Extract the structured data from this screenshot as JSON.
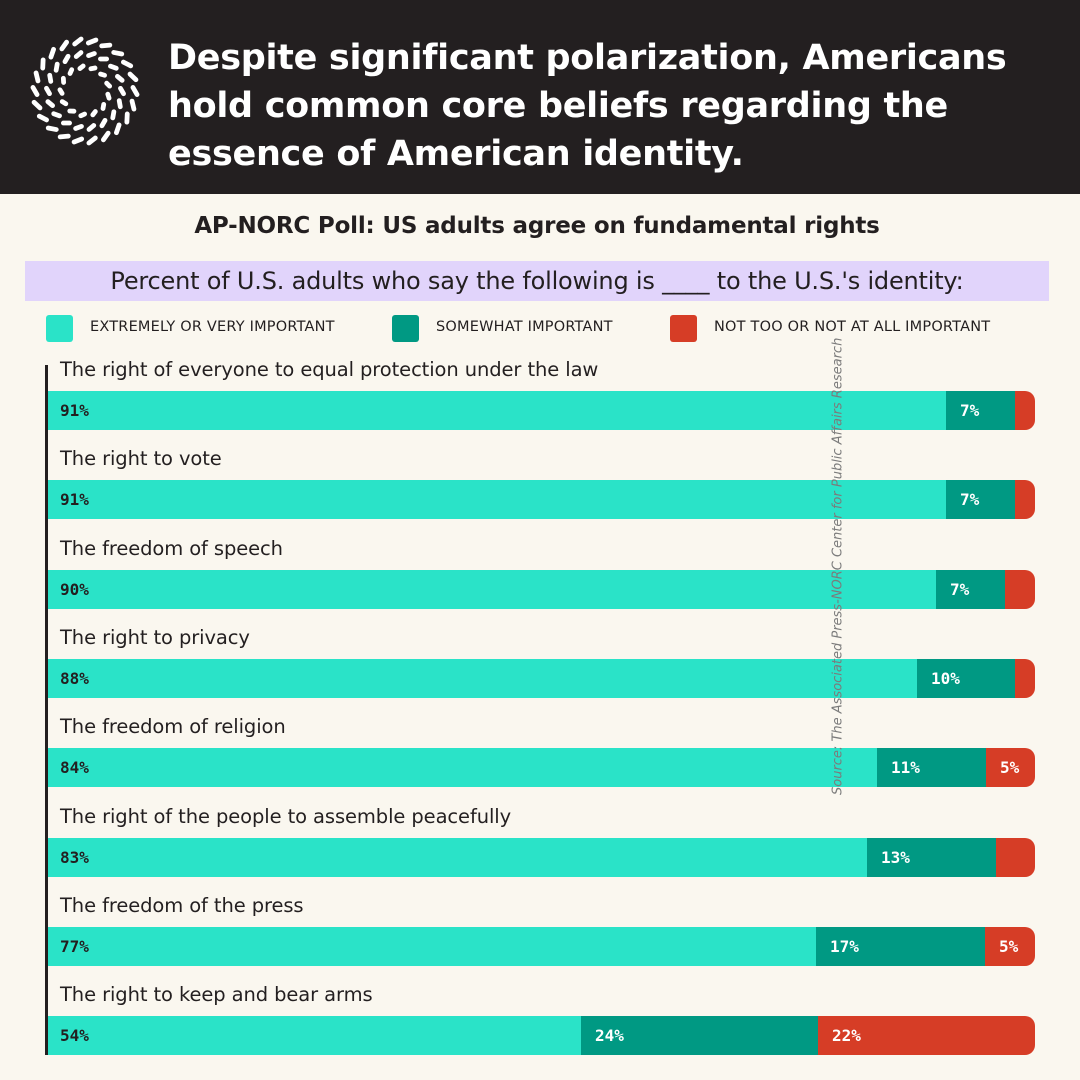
{
  "header": {
    "headline_lines": [
      "Despite significant polarization, Americans",
      "hold common core beliefs regarding the",
      "essence of American identity."
    ]
  },
  "colors": {
    "header_bg": "#231f20",
    "background": "#faf7ef",
    "question_bg": "#e1d4fb",
    "extremely": "#2ae3c8",
    "somewhat": "#009983",
    "not_important": "#d63d26"
  },
  "chart_data": {
    "type": "bar",
    "orientation": "horizontal",
    "stacked": true,
    "title": "AP-NORC Poll: US adults agree on fundamental rights",
    "subtitle": "Percent of U.S. adults who say the following is ____ to the U.S.'s identity:",
    "legend_position": "top",
    "grid": false,
    "xlim": [
      0,
      100
    ],
    "categories": [
      "The right of everyone to equal protection under the law",
      "The right to vote",
      "The freedom of speech",
      "The right to privacy",
      "The freedom of religion",
      "The right of the people to assemble peacefully",
      "The freedom of the press",
      "The right to keep and bear arms"
    ],
    "series": [
      {
        "name": "EXTREMELY OR VERY IMPORTANT",
        "color": "#2ae3c8",
        "values": [
          91,
          91,
          90,
          88,
          84,
          83,
          77,
          54
        ],
        "labels": [
          "91%",
          "91%",
          "90%",
          "88%",
          "84%",
          "83%",
          "77%",
          "54%"
        ]
      },
      {
        "name": "SOMEWHAT IMPORTANT",
        "color": "#009983",
        "values": [
          7,
          7,
          7,
          10,
          11,
          13,
          17,
          24
        ],
        "labels": [
          "7%",
          "7%",
          "7%",
          "10%",
          "11%",
          "13%",
          "17%",
          "24%"
        ]
      },
      {
        "name": "NOT TOO OR NOT AT ALL IMPORTANT",
        "color": "#d63d26",
        "values": [
          2,
          2,
          3,
          2,
          5,
          4,
          5,
          22
        ],
        "labels": [
          "",
          "",
          "",
          "",
          "5%",
          "",
          "5%",
          "22%"
        ]
      }
    ]
  },
  "source": "Source: The Associated Press-NORC Center for Public Affairs Research"
}
